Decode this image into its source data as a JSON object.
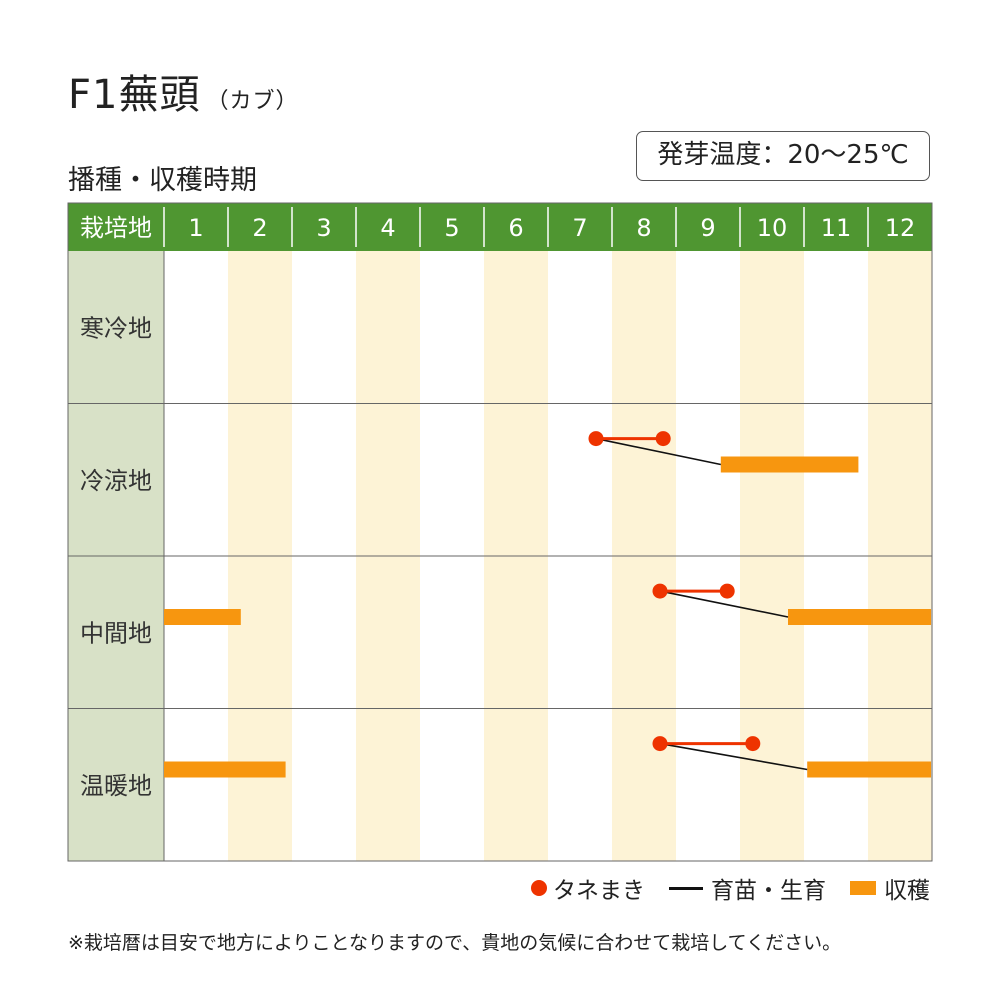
{
  "title": {
    "main": "F1蕪頭",
    "sub": "（カブ）"
  },
  "subtitle": "播種・収穫時期",
  "temperature": "発芽温度：20〜25℃",
  "legend": {
    "sowing": "タネまき",
    "growing": "育苗・生育",
    "harvest": "収穫"
  },
  "footnote": "※栽培暦は目安で地方によりことなりますので、貴地の気候に合わせて栽培してください。",
  "colors": {
    "header": "#4f9631",
    "row_label_bg": "#d8e1c7",
    "stripe": "#fdf3d6",
    "sowing": "#ee3300",
    "harvest": "#f7960f",
    "growing": "#111111"
  },
  "chart_data": {
    "type": "table",
    "row_header_label": "栽培地",
    "months": [
      "1",
      "2",
      "3",
      "4",
      "5",
      "6",
      "7",
      "8",
      "9",
      "10",
      "11",
      "12"
    ],
    "regions": [
      {
        "name": "寒冷地",
        "sowing": [],
        "harvest": []
      },
      {
        "name": "冷涼地",
        "sowing": [
          [
            7.75,
            8.8
          ]
        ],
        "harvest": [
          [
            9.7,
            11.85
          ]
        ]
      },
      {
        "name": "中間地",
        "sowing": [
          [
            8.75,
            9.8
          ]
        ],
        "harvest": [
          [
            1.0,
            2.2
          ],
          [
            10.75,
            13.0
          ]
        ]
      },
      {
        "name": "温暖地",
        "sowing": [
          [
            8.75,
            10.2
          ]
        ],
        "harvest": [
          [
            1.0,
            2.9
          ],
          [
            11.05,
            13.0
          ]
        ]
      }
    ]
  }
}
